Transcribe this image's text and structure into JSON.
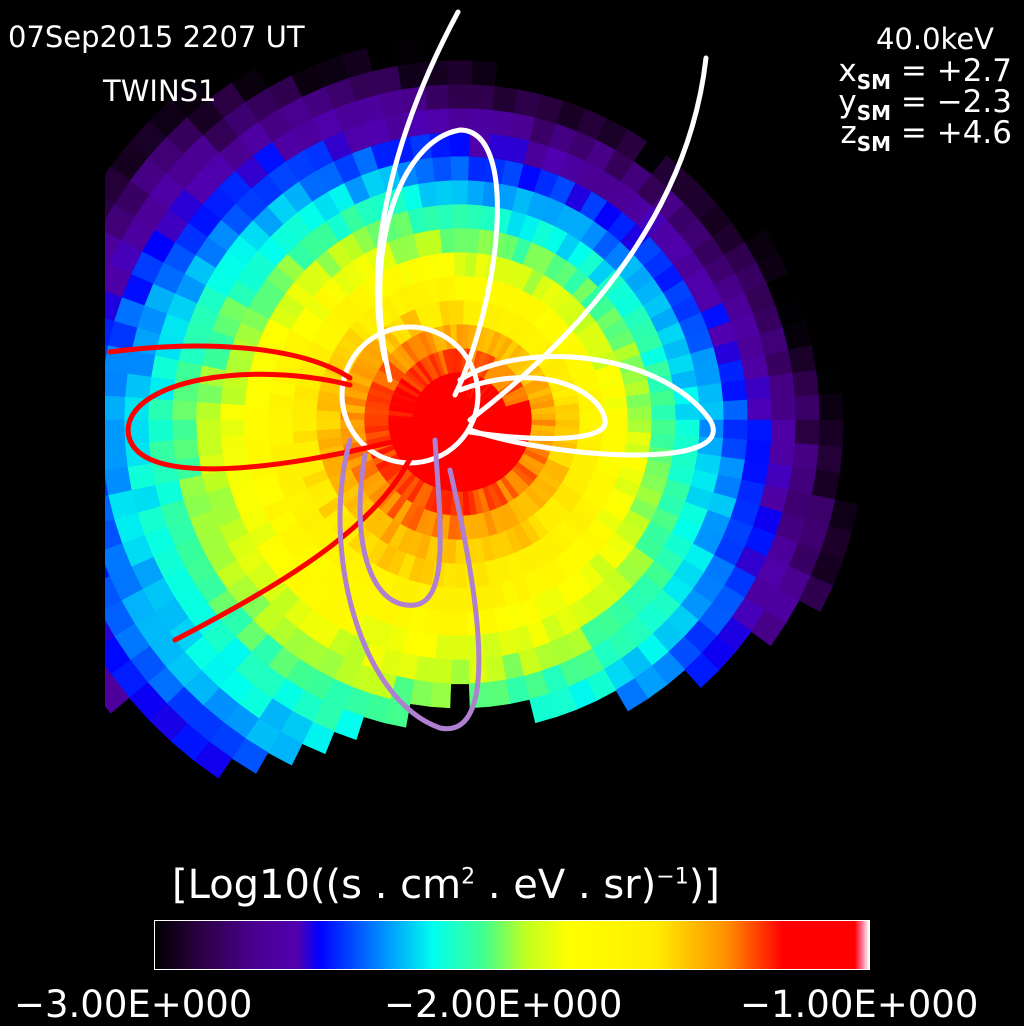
{
  "header": {
    "date": "07Sep2015 2207 UT",
    "satellite": "TWINS1",
    "energy": "40.0keV",
    "coords": [
      {
        "axis": "x",
        "sub": "SM",
        "value": "= +2.7"
      },
      {
        "axis": "y",
        "sub": "SM",
        "value": "= −2.3"
      },
      {
        "axis": "z",
        "sub": "SM",
        "value": "= +4.6"
      }
    ]
  },
  "chart_data": {
    "type": "heatmap",
    "colorbar": {
      "label_main": "[Log10((s . cm",
      "label_sup1": "2",
      "label_mid": " . eV . sr)",
      "label_sup2": "−1",
      "label_end": ")]",
      "range": [
        -3.0,
        -1.0
      ],
      "ticks": [
        "−3.00E+000",
        "−2.00E+000",
        "−1.00E+000"
      ],
      "colormap": "rainbow (black-purple-blue-cyan-green-yellow-red)"
    },
    "field_line_colors": {
      "dayside": "#ffffff",
      "red": "#ff0000",
      "purple": "#b080d0"
    }
  }
}
